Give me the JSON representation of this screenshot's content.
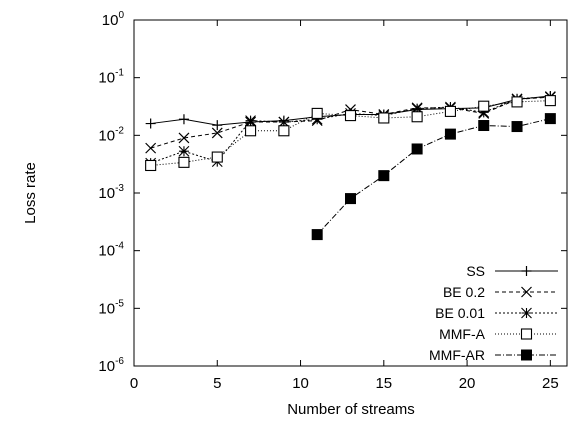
{
  "chart_data": {
    "type": "line",
    "title": "",
    "xlabel": "Number of streams",
    "ylabel": "Loss rate",
    "xlim": [
      0,
      26
    ],
    "ylim": [
      1e-06,
      1
    ],
    "yscale": "log",
    "grid": false,
    "legend_position": "bottom-right",
    "x_ticks": [
      {
        "value": 0,
        "label": "0"
      },
      {
        "value": 5,
        "label": "5"
      },
      {
        "value": 10,
        "label": "10"
      },
      {
        "value": 15,
        "label": "15"
      },
      {
        "value": 20,
        "label": "20"
      },
      {
        "value": 25,
        "label": "25"
      }
    ],
    "y_ticks": [
      {
        "value": 1,
        "base": "10",
        "exp": "0"
      },
      {
        "value": 0.1,
        "base": "10",
        "exp": "-1"
      },
      {
        "value": 0.01,
        "base": "10",
        "exp": "-2"
      },
      {
        "value": 0.001,
        "base": "10",
        "exp": "-3"
      },
      {
        "value": 0.0001,
        "base": "10",
        "exp": "-4"
      },
      {
        "value": 1e-05,
        "base": "10",
        "exp": "-5"
      },
      {
        "value": 1e-06,
        "base": "10",
        "exp": "-6"
      }
    ],
    "series": [
      {
        "name": "SS",
        "marker": "plus",
        "dash": "",
        "x": [
          1,
          3,
          5,
          7,
          9,
          11,
          13,
          15,
          17,
          19,
          21,
          23,
          25
        ],
        "y": [
          0.016,
          0.019,
          0.015,
          0.017,
          0.018,
          0.021,
          0.023,
          0.023,
          0.028,
          0.029,
          0.03,
          0.042,
          0.048
        ]
      },
      {
        "name": "BE 0.2",
        "marker": "cross",
        "dash": "4,3",
        "x": [
          1,
          3,
          5,
          7,
          9,
          11,
          13,
          15,
          17,
          19,
          21,
          23,
          25
        ],
        "y": [
          0.006,
          0.009,
          0.011,
          0.017,
          0.017,
          0.018,
          0.028,
          0.023,
          0.03,
          0.03,
          0.024,
          0.042,
          0.046
        ]
      },
      {
        "name": "BE 0.01",
        "marker": "star",
        "dash": "2,2",
        "x": [
          1,
          3,
          5,
          7,
          9,
          11,
          13,
          15,
          17,
          19,
          21,
          23,
          25
        ],
        "y": [
          0.0033,
          0.0053,
          0.0035,
          0.018,
          0.017,
          0.019,
          0.024,
          0.022,
          0.029,
          0.031,
          0.025,
          0.043,
          0.047
        ]
      },
      {
        "name": "MMF-A",
        "marker": "square-open",
        "dash": "1,2",
        "x": [
          1,
          3,
          5,
          7,
          9,
          11,
          13,
          15,
          17,
          19,
          21,
          23,
          25
        ],
        "y": [
          0.003,
          0.0034,
          0.0042,
          0.012,
          0.012,
          0.024,
          0.022,
          0.02,
          0.021,
          0.026,
          0.032,
          0.038,
          0.04
        ]
      },
      {
        "name": "MMF-AR",
        "marker": "square-filled",
        "dash": "6,2,1,2",
        "x": [
          11,
          13,
          15,
          17,
          19,
          21,
          23,
          25
        ],
        "y": [
          0.00019,
          0.0008,
          0.002,
          0.0058,
          0.0105,
          0.0148,
          0.0142,
          0.0195
        ]
      }
    ]
  }
}
